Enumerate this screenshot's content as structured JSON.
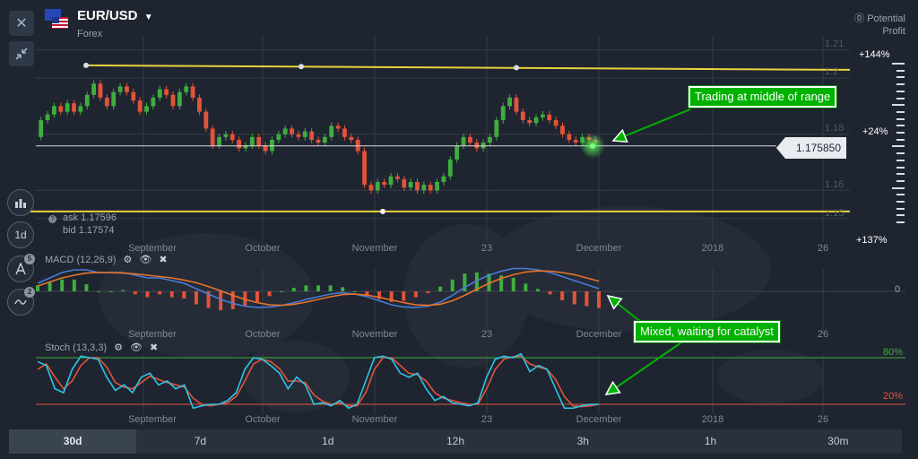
{
  "header": {
    "symbol": "EUR/USD",
    "market": "Forex",
    "potential_label": "Potential",
    "profit_label": "Profit"
  },
  "toolbar": {
    "close_icon": "close-icon",
    "collapse_icon": "collapse-arrows-icon",
    "chart_type_icon": "bar-chart-icon",
    "interval_label": "1d",
    "indicators_badge": "5",
    "drawings_badge": "2"
  },
  "quote": {
    "ask_label": "ask 1.17596",
    "bid_label": "bid 1.17574",
    "current_price": "1.175850"
  },
  "right_scale": {
    "price_ticks": [
      "1.21",
      "1.2",
      "1.18",
      "1.16",
      "1.15"
    ],
    "profit_top": "+144%",
    "profit_mid": "+24%",
    "profit_bottom": "+137%"
  },
  "x_axis_labels": [
    "September",
    "October",
    "November",
    "23",
    "December",
    "2018",
    "26"
  ],
  "macd": {
    "label": "MACD (12,26,9)",
    "zero_label": "0"
  },
  "stoch": {
    "label": "Stoch (13,3,3)",
    "upper_label": "80%",
    "lower_label": "20%"
  },
  "annotations": {
    "price": "Trading at middle of range",
    "indicators": "Mixed, waiting for catalyst"
  },
  "timeframes": [
    "30d",
    "7d",
    "1d",
    "12h",
    "3h",
    "1h",
    "30m"
  ],
  "active_timeframe": "30d",
  "colors": {
    "background": "#1f2530",
    "up_candle": "#3fae3f",
    "down_candle": "#e2533a",
    "range_line": "#e8d33a",
    "macd_line": "#4a7bd8",
    "signal_line": "#e8732a",
    "stoch_k": "#2fc4e8",
    "stoch_d": "#e2533a",
    "annotation": "#00b200"
  },
  "chart_data": {
    "type": "candlestick",
    "candles": [
      [
        1.179,
        1.185
      ],
      [
        1.185,
        1.187
      ],
      [
        1.187,
        1.19
      ],
      [
        1.19,
        1.188
      ],
      [
        1.188,
        1.191
      ],
      [
        1.191,
        1.188
      ],
      [
        1.188,
        1.19
      ],
      [
        1.19,
        1.194
      ],
      [
        1.194,
        1.198
      ],
      [
        1.198,
        1.193
      ],
      [
        1.193,
        1.19
      ],
      [
        1.19,
        1.195
      ],
      [
        1.195,
        1.197
      ],
      [
        1.197,
        1.195
      ],
      [
        1.195,
        1.192
      ],
      [
        1.192,
        1.188
      ],
      [
        1.188,
        1.19
      ],
      [
        1.19,
        1.193
      ],
      [
        1.193,
        1.196
      ],
      [
        1.196,
        1.194
      ],
      [
        1.194,
        1.19
      ],
      [
        1.19,
        1.195
      ],
      [
        1.195,
        1.197
      ],
      [
        1.197,
        1.193
      ],
      [
        1.193,
        1.188
      ],
      [
        1.188,
        1.182
      ],
      [
        1.182,
        1.176
      ],
      [
        1.176,
        1.179
      ],
      [
        1.179,
        1.18
      ],
      [
        1.18,
        1.178
      ],
      [
        1.178,
        1.175
      ],
      [
        1.175,
        1.176
      ],
      [
        1.176,
        1.179
      ],
      [
        1.179,
        1.176
      ],
      [
        1.176,
        1.174
      ],
      [
        1.174,
        1.178
      ],
      [
        1.178,
        1.18
      ],
      [
        1.18,
        1.182
      ],
      [
        1.182,
        1.18
      ],
      [
        1.18,
        1.179
      ],
      [
        1.179,
        1.181
      ],
      [
        1.181,
        1.178
      ],
      [
        1.178,
        1.177
      ],
      [
        1.177,
        1.179
      ],
      [
        1.179,
        1.183
      ],
      [
        1.183,
        1.182
      ],
      [
        1.182,
        1.179
      ],
      [
        1.179,
        1.178
      ],
      [
        1.178,
        1.174
      ],
      [
        1.174,
        1.162
      ],
      [
        1.162,
        1.16
      ],
      [
        1.16,
        1.163
      ],
      [
        1.163,
        1.162
      ],
      [
        1.162,
        1.165
      ],
      [
        1.165,
        1.164
      ],
      [
        1.164,
        1.161
      ],
      [
        1.161,
        1.163
      ],
      [
        1.163,
        1.16
      ],
      [
        1.16,
        1.162
      ],
      [
        1.162,
        1.16
      ],
      [
        1.16,
        1.163
      ],
      [
        1.163,
        1.165
      ],
      [
        1.165,
        1.171
      ],
      [
        1.171,
        1.176
      ],
      [
        1.176,
        1.179
      ],
      [
        1.179,
        1.177
      ],
      [
        1.177,
        1.175
      ],
      [
        1.175,
        1.177
      ],
      [
        1.177,
        1.179
      ],
      [
        1.179,
        1.185
      ],
      [
        1.185,
        1.19
      ],
      [
        1.19,
        1.193
      ],
      [
        1.193,
        1.188
      ],
      [
        1.188,
        1.185
      ],
      [
        1.185,
        1.184
      ],
      [
        1.184,
        1.186
      ],
      [
        1.186,
        1.187
      ],
      [
        1.187,
        1.185
      ],
      [
        1.185,
        1.183
      ],
      [
        1.183,
        1.18
      ],
      [
        1.18,
        1.178
      ],
      [
        1.178,
        1.177
      ],
      [
        1.177,
        1.179
      ],
      [
        1.179,
        1.178
      ],
      [
        1.178,
        1.177
      ]
    ],
    "ylim": [
      1.148,
      1.215
    ],
    "range_top": 1.2045,
    "range_bottom": 1.1525,
    "current": 1.17585,
    "macd_line": [
      0.3,
      0.5,
      0.7,
      0.8,
      0.8,
      0.7,
      0.7,
      0.7,
      0.6,
      0.5,
      0.5,
      0.4,
      0.3,
      0.1,
      -0.1,
      -0.3,
      -0.45,
      -0.55,
      -0.6,
      -0.58,
      -0.52,
      -0.42,
      -0.3,
      -0.2,
      -0.1,
      -0.05,
      -0.1,
      -0.2,
      -0.35,
      -0.5,
      -0.58,
      -0.6,
      -0.55,
      -0.4,
      -0.15,
      0.15,
      0.4,
      0.6,
      0.75,
      0.85,
      0.85,
      0.8,
      0.7,
      0.55,
      0.4,
      0.25,
      0.1
    ],
    "signal_line": [
      0.2,
      0.35,
      0.5,
      0.6,
      0.68,
      0.7,
      0.7,
      0.68,
      0.65,
      0.6,
      0.55,
      0.5,
      0.42,
      0.32,
      0.18,
      0.02,
      -0.15,
      -0.3,
      -0.42,
      -0.5,
      -0.52,
      -0.48,
      -0.4,
      -0.3,
      -0.2,
      -0.12,
      -0.1,
      -0.14,
      -0.22,
      -0.32,
      -0.42,
      -0.5,
      -0.52,
      -0.48,
      -0.35,
      -0.15,
      0.08,
      0.3,
      0.48,
      0.62,
      0.72,
      0.76,
      0.75,
      0.7,
      0.62,
      0.5,
      0.38
    ],
    "stoch_k": [
      75,
      70,
      40,
      35,
      65,
      82,
      80,
      78,
      55,
      38,
      45,
      35,
      55,
      60,
      45,
      50,
      40,
      45,
      15,
      18,
      20,
      20,
      25,
      35,
      65,
      80,
      78,
      70,
      60,
      40,
      55,
      45,
      20,
      22,
      18,
      25,
      15,
      20,
      50,
      80,
      82,
      78,
      60,
      55,
      60,
      40,
      25,
      30,
      22,
      20,
      18,
      22,
      55,
      78,
      82,
      80,
      85,
      62,
      70,
      65,
      40,
      15,
      15,
      18,
      20,
      20
    ],
    "stoch_d": [
      65,
      72,
      55,
      40,
      50,
      70,
      80,
      80,
      68,
      48,
      42,
      40,
      48,
      56,
      52,
      48,
      45,
      42,
      28,
      20,
      18,
      20,
      22,
      30,
      50,
      72,
      78,
      75,
      66,
      50,
      50,
      48,
      32,
      24,
      20,
      22,
      18,
      18,
      35,
      65,
      80,
      80,
      70,
      60,
      58,
      50,
      35,
      28,
      25,
      22,
      20,
      20,
      40,
      65,
      78,
      81,
      82,
      72,
      68,
      65,
      52,
      30,
      18,
      17,
      18,
      20
    ]
  }
}
